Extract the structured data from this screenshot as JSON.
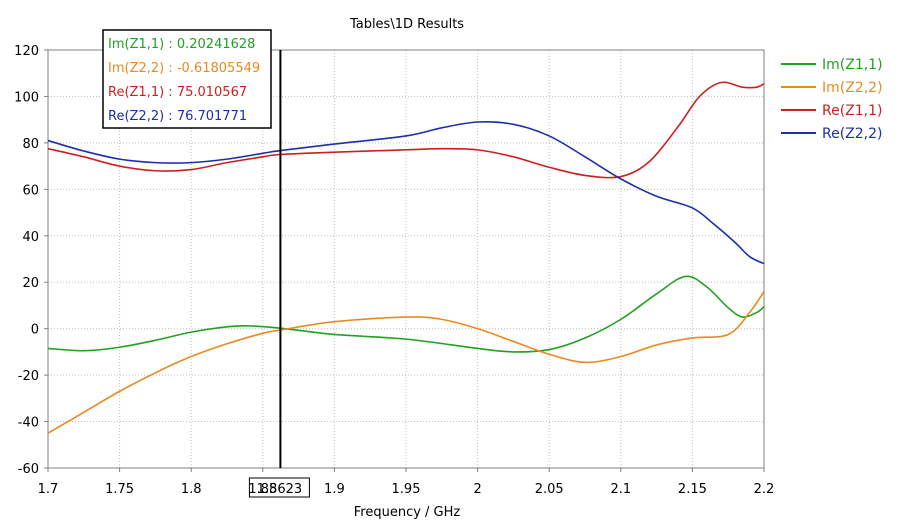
{
  "chart_data": {
    "type": "line",
    "title": "Tables\\1D Results",
    "xlabel": "Frequency / GHz",
    "ylabel": "",
    "xlim": [
      1.7,
      2.2
    ],
    "ylim": [
      -60,
      120
    ],
    "x_ticks": [
      "1.7",
      "1.75",
      "1.8",
      "1.85",
      "1.9",
      "1.95",
      "2",
      "2.05",
      "2.1",
      "2.15",
      "2.2"
    ],
    "y_ticks": [
      "120",
      "100",
      "80",
      "60",
      "40",
      "20",
      "0",
      "-20",
      "-40",
      "-60"
    ],
    "grid": true,
    "legend_position": "right",
    "marker": {
      "x": 1.8623,
      "label": "1.8623"
    },
    "readout": [
      {
        "name": "Im(Z1,1)",
        "value": "0.20241628"
      },
      {
        "name": "Im(Z2,2)",
        "value": "-0.61805549"
      },
      {
        "name": "Re(Z1,1)",
        "value": "75.010567"
      },
      {
        "name": "Re(Z2,2)",
        "value": "76.701771"
      }
    ],
    "series": [
      {
        "name": "Im(Z1,1)",
        "color": "#22a022",
        "x": [
          1.7,
          1.725,
          1.75,
          1.775,
          1.8,
          1.825,
          1.84,
          1.8623,
          1.9,
          1.95,
          2.0,
          2.025,
          2.05,
          2.075,
          2.1,
          2.125,
          2.145,
          2.16,
          2.175,
          2.185,
          2.195,
          2.2
        ],
        "y": [
          -8.5,
          -9.5,
          -8.0,
          -5.0,
          -1.5,
          0.8,
          1.2,
          0.2,
          -2.5,
          -4.5,
          -8.5,
          -10.0,
          -9.0,
          -4.0,
          4.0,
          15.0,
          22.5,
          18.0,
          9.0,
          5.0,
          7.0,
          9.5
        ]
      },
      {
        "name": "Im(Z2,2)",
        "color": "#e88a20",
        "x": [
          1.7,
          1.725,
          1.75,
          1.775,
          1.8,
          1.825,
          1.85,
          1.8623,
          1.9,
          1.95,
          1.975,
          2.0,
          2.025,
          2.05,
          2.075,
          2.1,
          2.125,
          2.15,
          2.175,
          2.19,
          2.2
        ],
        "y": [
          -45.0,
          -36.0,
          -27.0,
          -19.0,
          -12.0,
          -6.5,
          -2.0,
          -0.6,
          3.0,
          5.0,
          4.0,
          0.0,
          -5.5,
          -11.0,
          -14.5,
          -12.0,
          -7.0,
          -4.0,
          -2.5,
          7.0,
          16.0
        ]
      },
      {
        "name": "Re(Z1,1)",
        "color": "#cc2020",
        "x": [
          1.7,
          1.725,
          1.75,
          1.775,
          1.8,
          1.825,
          1.85,
          1.8623,
          1.9,
          1.95,
          1.975,
          2.0,
          2.025,
          2.05,
          2.075,
          2.1,
          2.12,
          2.14,
          2.155,
          2.17,
          2.185,
          2.195,
          2.2
        ],
        "y": [
          77.5,
          74.0,
          70.0,
          68.0,
          68.5,
          71.5,
          74.0,
          75.0,
          76.0,
          77.0,
          77.5,
          77.0,
          74.0,
          69.5,
          66.0,
          65.5,
          72.0,
          87.0,
          100.0,
          106.0,
          104.0,
          104.0,
          105.5
        ]
      },
      {
        "name": "Re(Z2,2)",
        "color": "#1c2ea8",
        "x": [
          1.7,
          1.725,
          1.75,
          1.775,
          1.8,
          1.825,
          1.85,
          1.8623,
          1.9,
          1.95,
          1.975,
          2.0,
          2.025,
          2.05,
          2.075,
          2.1,
          2.125,
          2.15,
          2.165,
          2.18,
          2.19,
          2.2
        ],
        "y": [
          81.0,
          76.5,
          73.0,
          71.5,
          71.5,
          73.0,
          75.5,
          76.7,
          79.5,
          83.0,
          86.5,
          89.0,
          88.0,
          83.0,
          74.0,
          64.5,
          57.0,
          52.0,
          45.0,
          37.0,
          31.0,
          28.0
        ]
      }
    ]
  }
}
